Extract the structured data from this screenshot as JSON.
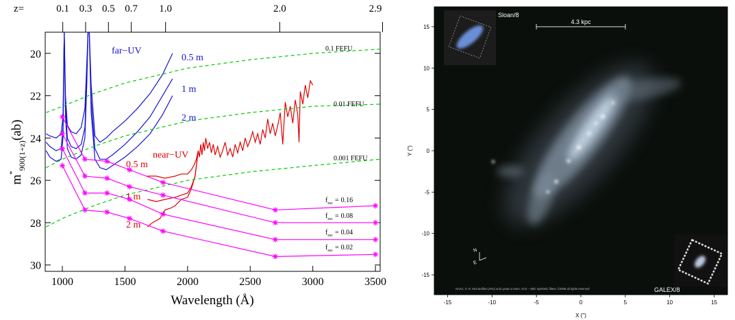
{
  "chart_data": [
    {
      "type": "line",
      "xlabel": "Wavelength (Å)",
      "ylabel": {
        "main": "m",
        "sup": "*",
        "sub": "900(1+z)",
        "tail": "(ab)"
      },
      "x2label": "z=",
      "xlim": [
        863,
        3538
      ],
      "ylim": [
        19,
        30.3
      ],
      "y_reversed": true,
      "xticks": [
        1000,
        1500,
        2000,
        2500,
        3000,
        3500
      ],
      "yticks": [
        20,
        22,
        24,
        26,
        28,
        30
      ],
      "x2ticks": [
        0.1,
        0.3,
        0.5,
        0.7,
        {
          "value": 1,
          "label": "1.0"
        },
        {
          "value": 2,
          "label": "2.0"
        },
        2.9
      ],
      "annotations": [
        "far−UV",
        "near−UV"
      ],
      "fesc_label": {
        "symbol": "f",
        "subscript": "esc",
        "equals": "="
      },
      "series": [
        {
          "name": "0.5 m",
          "color": "#1414d2",
          "x": [
            870,
            900,
            950,
            990,
            1005,
            1015,
            1025,
            1040,
            1070,
            1110,
            1150,
            1180,
            1195,
            1205,
            1215,
            1230,
            1260,
            1300,
            1350,
            1400,
            1500,
            1600,
            1700,
            1800,
            1880
          ],
          "values": [
            23.8,
            23.9,
            24.0,
            23.8,
            23.0,
            19.0,
            22.0,
            23.4,
            23.7,
            23.8,
            23.5,
            22.6,
            20.5,
            19.0,
            19.0,
            21.5,
            23.9,
            24.2,
            24.0,
            23.7,
            23.2,
            22.6,
            21.9,
            21.0,
            20.0
          ]
        },
        {
          "name": "1 m",
          "color": "#1414d2",
          "x": [
            870,
            900,
            950,
            990,
            1005,
            1015,
            1025,
            1040,
            1070,
            1110,
            1150,
            1180,
            1195,
            1205,
            1215,
            1230,
            1260,
            1300,
            1350,
            1400,
            1500,
            1600,
            1700,
            1800,
            1880
          ],
          "values": [
            24.2,
            24.4,
            24.6,
            24.5,
            23.5,
            19.0,
            22.5,
            24.0,
            24.4,
            24.5,
            24.3,
            23.5,
            21.0,
            19.0,
            19.0,
            22.2,
            24.5,
            25.0,
            25.0,
            24.8,
            24.3,
            23.7,
            23.0,
            22.0,
            21.2
          ]
        },
        {
          "name": "2 m",
          "color": "#1414d2",
          "x": [
            870,
            900,
            950,
            990,
            1005,
            1015,
            1025,
            1040,
            1070,
            1110,
            1150,
            1180,
            1195,
            1205,
            1215,
            1230,
            1260,
            1300,
            1350,
            1400,
            1500,
            1600,
            1700,
            1800,
            1880
          ],
          "values": [
            24.6,
            24.9,
            25.1,
            25.0,
            24.0,
            19.0,
            23.0,
            24.5,
            24.9,
            25.0,
            24.8,
            24.0,
            21.5,
            19.0,
            19.0,
            22.8,
            25.0,
            25.4,
            25.5,
            25.3,
            24.9,
            24.4,
            23.8,
            22.9,
            22.0
          ]
        },
        {
          "name": "0.5 m",
          "color": "#e00000",
          "x": [
            1680,
            1750,
            1820,
            1900,
            1950,
            2000,
            2030,
            2050,
            2070,
            2085,
            2095,
            2105,
            2115,
            2125,
            2135,
            2145,
            2160,
            2175,
            2190,
            2205,
            2220,
            2240,
            2260,
            2280,
            2300,
            2320,
            2340,
            2360,
            2380,
            2400,
            2420,
            2440,
            2460,
            2480,
            2500,
            2520,
            2540,
            2560,
            2580,
            2600,
            2620,
            2640,
            2660,
            2680,
            2700,
            2720,
            2740,
            2760,
            2780,
            2800,
            2820,
            2840,
            2860,
            2880,
            2890,
            2900,
            2920,
            2940,
            2960,
            2980,
            3000
          ],
          "values": [
            25.8,
            25.8,
            25.9,
            25.8,
            25.7,
            25.7,
            25.5,
            25.3,
            25.0,
            24.6,
            24.9,
            24.3,
            24.8,
            24.2,
            24.6,
            24.0,
            24.5,
            24.2,
            24.7,
            24.3,
            24.8,
            24.4,
            24.9,
            24.6,
            24.2,
            24.8,
            24.5,
            24.9,
            24.3,
            24.7,
            24.2,
            24.6,
            24.0,
            24.4,
            24.1,
            23.7,
            24.2,
            23.8,
            24.3,
            23.6,
            24.0,
            23.1,
            23.8,
            23.3,
            23.9,
            23.4,
            22.8,
            24.3,
            22.3,
            23.0,
            22.5,
            23.3,
            22.2,
            22.9,
            24.2,
            21.8,
            22.4,
            21.5,
            22.1,
            21.3,
            21.5
          ]
        },
        {
          "name": "1 m",
          "color": "#e00000",
          "x": [
            1680,
            1750,
            1820,
            1900,
            1950,
            2000,
            2030,
            2060,
            2085
          ],
          "values": [
            26.9,
            27.0,
            26.9,
            26.8,
            26.7,
            26.6,
            26.3,
            25.8,
            24.6
          ]
        },
        {
          "name": "2 m",
          "color": "#e00000",
          "x": [
            1680,
            1720,
            1780,
            1820,
            1870,
            1900,
            1950,
            2000,
            2030,
            2060,
            2085
          ],
          "values": [
            28.2,
            28.0,
            27.8,
            27.4,
            27.3,
            27.2,
            26.9,
            26.8,
            26.4,
            25.8,
            24.6
          ]
        },
        {
          "name": "0.1 FEFU",
          "color": "#00cc00",
          "dash": true,
          "x": [
            870,
            1000,
            1250,
            1500,
            2000,
            2500,
            3000,
            3538
          ],
          "values": [
            22.8,
            22.5,
            21.9,
            21.4,
            20.7,
            20.3,
            20.0,
            19.8
          ]
        },
        {
          "name": "0.01 FEFU",
          "color": "#00cc00",
          "dash": true,
          "x": [
            870,
            1000,
            1250,
            1500,
            2000,
            2500,
            3000,
            3538
          ],
          "values": [
            25.4,
            25.0,
            24.4,
            23.9,
            23.2,
            22.8,
            22.5,
            22.4
          ]
        },
        {
          "name": "0.001 FEFU",
          "color": "#00cc00",
          "dash": true,
          "x": [
            870,
            1000,
            1250,
            1500,
            2000,
            2500,
            3000,
            3538
          ],
          "values": [
            28.2,
            27.8,
            27.2,
            26.7,
            26.0,
            25.6,
            25.3,
            25.0
          ]
        },
        {
          "name": "0.16",
          "color": "#ff00ff",
          "marker": "asterisk",
          "x": [
            1000,
            1180,
            1356,
            1536,
            1804,
            2701,
            3500
          ],
          "values": [
            23.0,
            25.0,
            25.1,
            25.5,
            26.1,
            27.4,
            27.2
          ]
        },
        {
          "name": "0.08",
          "color": "#ff00ff",
          "marker": "asterisk",
          "x": [
            1000,
            1180,
            1356,
            1536,
            1804,
            2701,
            3500
          ],
          "values": [
            23.8,
            25.8,
            25.9,
            26.3,
            26.7,
            28.0,
            28.0
          ]
        },
        {
          "name": "0.04",
          "color": "#ff00ff",
          "marker": "asterisk",
          "x": [
            1000,
            1180,
            1356,
            1536,
            1804,
            2701,
            3500
          ],
          "values": [
            24.5,
            26.6,
            26.6,
            26.9,
            27.6,
            28.8,
            28.8
          ]
        },
        {
          "name": "0.02",
          "color": "#ff00ff",
          "marker": "asterisk",
          "x": [
            1000,
            1180,
            1356,
            1536,
            1804,
            2701,
            3500
          ],
          "values": [
            25.3,
            27.4,
            27.5,
            27.8,
            28.4,
            29.6,
            29.5
          ]
        }
      ]
    },
    {
      "type": "image",
      "xlabel": "X (\")",
      "ylabel": "Y (\")",
      "xlim": [
        -16.5,
        16.5
      ],
      "ylim": [
        -17.4,
        17.4
      ],
      "xticks": [
        -15,
        -10,
        -5,
        0,
        5,
        10,
        15
      ],
      "yticks": [
        -15,
        -10,
        -5,
        0,
        5,
        10,
        15
      ],
      "annotations": {
        "inset_top": "Sloan/8",
        "scale_bar": "4.3 kpc",
        "inset_bottom": "GALEX/8",
        "credit": "NASA, S. R. McCandliss (JHU) and Lyman α team, ACS – SBC synthetic filters, ©2008 all rights reserved",
        "compass_n": "N",
        "compass_e": "E"
      }
    }
  ]
}
